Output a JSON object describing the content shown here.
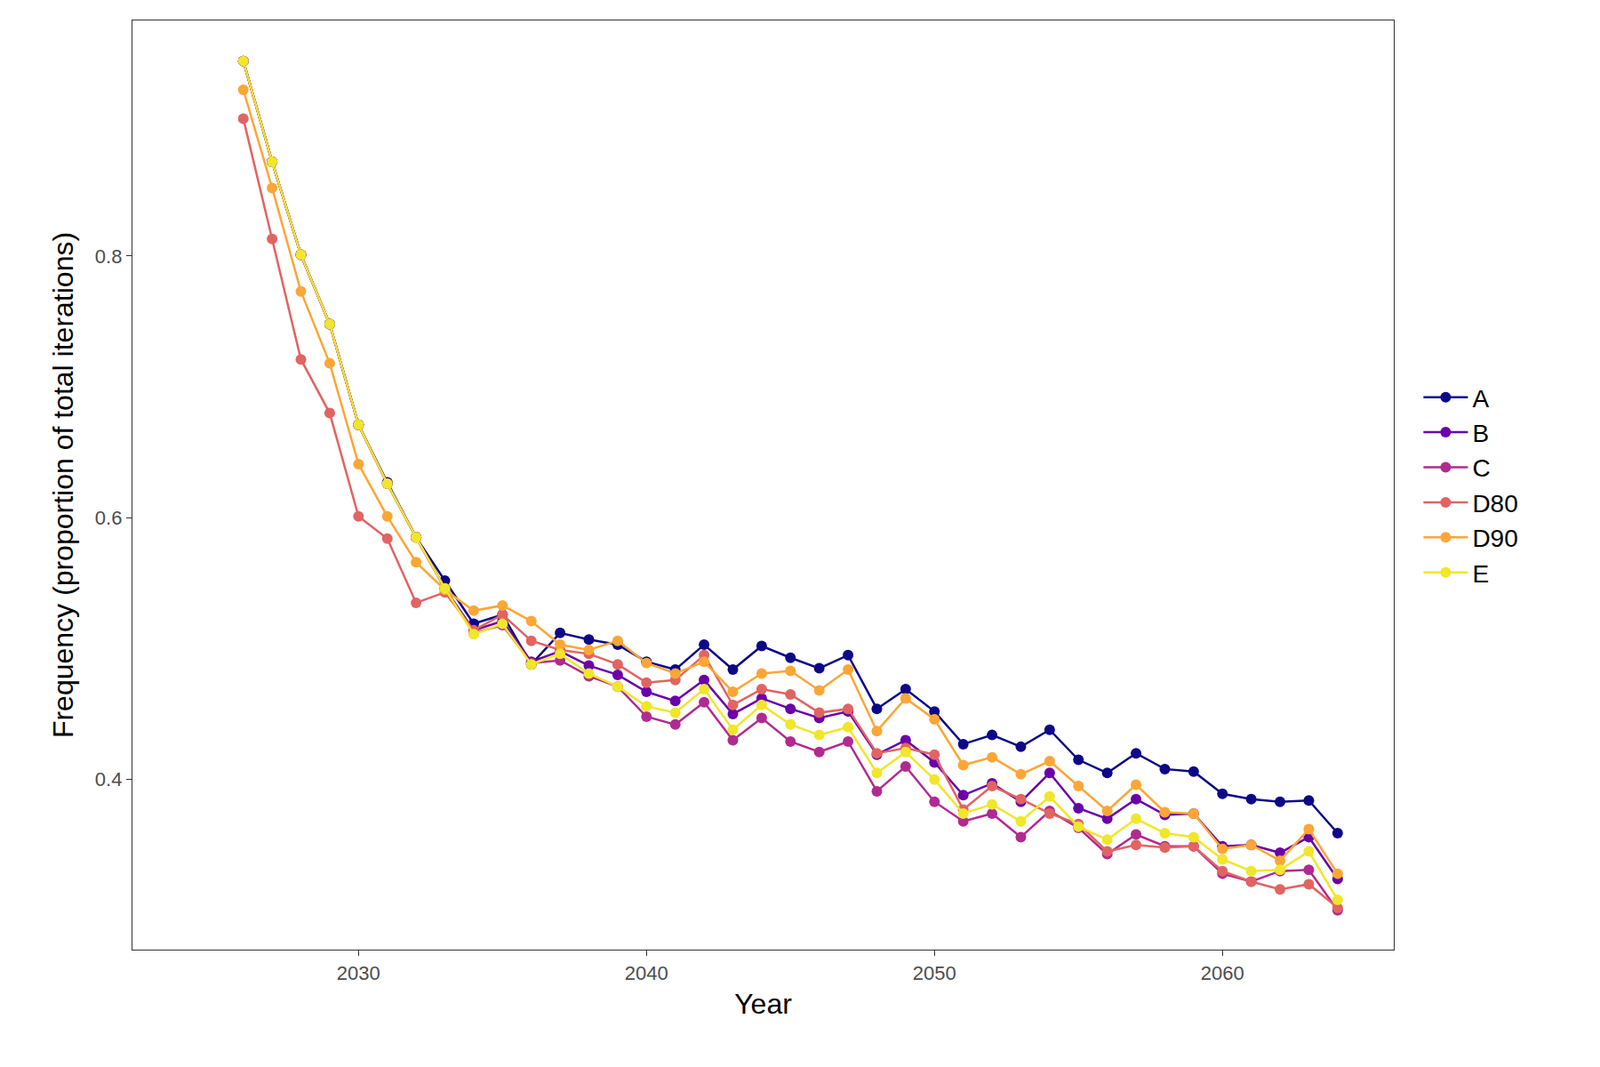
{
  "chart_data": {
    "type": "line",
    "x_label": "Year",
    "y_label": "Frequency (proportion of total iterations)",
    "x": [
      2026,
      2027,
      2028,
      2029,
      2030,
      2031,
      2032,
      2033,
      2034,
      2035,
      2036,
      2037,
      2038,
      2039,
      2040,
      2041,
      2042,
      2043,
      2044,
      2045,
      2046,
      2047,
      2048,
      2049,
      2050,
      2051,
      2052,
      2053,
      2054,
      2055,
      2056,
      2057,
      2058,
      2059,
      2060,
      2061,
      2062,
      2063,
      2064
    ],
    "xlim": [
      2022.15,
      2065.95
    ],
    "xticks": [
      2030,
      2040,
      2050,
      2060
    ],
    "ylim": [
      0.27,
      0.98
    ],
    "yticks": [
      0.4,
      0.6,
      0.8
    ],
    "grid": false,
    "legend": "right",
    "marker": "circle",
    "line_style": "solid",
    "series": [
      {
        "name": "A",
        "color": "#0d0887",
        "values": [
          0.949,
          0.872,
          0.801,
          0.748,
          0.671,
          0.627,
          0.585,
          0.552,
          0.519,
          0.526,
          0.488,
          0.512,
          0.507,
          0.503,
          0.49,
          0.484,
          0.503,
          0.484,
          0.502,
          0.493,
          0.485,
          0.495,
          0.454,
          0.469,
          0.452,
          0.427,
          0.434,
          0.425,
          0.438,
          0.415,
          0.405,
          0.42,
          0.408,
          0.406,
          0.389,
          0.385,
          0.383,
          0.384,
          0.359
        ]
      },
      {
        "name": "B",
        "color": "#6a00a8",
        "values": [
          0.949,
          0.872,
          0.801,
          0.748,
          0.671,
          0.626,
          0.585,
          0.546,
          0.514,
          0.521,
          0.49,
          0.498,
          0.487,
          0.48,
          0.467,
          0.46,
          0.476,
          0.45,
          0.462,
          0.454,
          0.447,
          0.452,
          0.419,
          0.43,
          0.413,
          0.388,
          0.397,
          0.383,
          0.405,
          0.378,
          0.37,
          0.385,
          0.373,
          0.374,
          0.349,
          0.35,
          0.344,
          0.356,
          0.324
        ]
      },
      {
        "name": "C",
        "color": "#b12a90",
        "values": [
          0.949,
          0.872,
          0.801,
          0.748,
          0.671,
          0.626,
          0.585,
          0.546,
          0.512,
          0.518,
          0.489,
          0.491,
          0.479,
          0.471,
          0.448,
          0.442,
          0.459,
          0.43,
          0.447,
          0.429,
          0.421,
          0.429,
          0.391,
          0.41,
          0.383,
          0.368,
          0.374,
          0.356,
          0.376,
          0.363,
          0.343,
          0.358,
          0.349,
          0.349,
          0.328,
          0.322,
          0.33,
          0.331,
          0.3
        ]
      },
      {
        "name": "D80",
        "color": "#e16462",
        "values": [
          0.905,
          0.813,
          0.721,
          0.68,
          0.601,
          0.584,
          0.535,
          0.543,
          0.514,
          0.526,
          0.506,
          0.499,
          0.496,
          0.488,
          0.474,
          0.476,
          0.495,
          0.457,
          0.469,
          0.465,
          0.451,
          0.454,
          0.42,
          0.424,
          0.419,
          0.377,
          0.395,
          0.385,
          0.374,
          0.366,
          0.345,
          0.35,
          0.348,
          0.349,
          0.33,
          0.322,
          0.316,
          0.32,
          0.302
        ]
      },
      {
        "name": "D90",
        "color": "#fca636",
        "values": [
          0.927,
          0.852,
          0.773,
          0.718,
          0.641,
          0.601,
          0.566,
          0.545,
          0.529,
          0.533,
          0.521,
          0.503,
          0.499,
          0.506,
          0.489,
          0.481,
          0.49,
          0.467,
          0.481,
          0.483,
          0.468,
          0.484,
          0.437,
          0.462,
          0.446,
          0.411,
          0.417,
          0.404,
          0.414,
          0.395,
          0.376,
          0.396,
          0.375,
          0.374,
          0.347,
          0.35,
          0.338,
          0.362,
          0.328
        ]
      },
      {
        "name": "E",
        "color": "#f0e62a",
        "values": [
          0.949,
          0.872,
          0.801,
          0.748,
          0.671,
          0.626,
          0.585,
          0.546,
          0.511,
          0.519,
          0.488,
          0.496,
          0.481,
          0.471,
          0.456,
          0.451,
          0.469,
          0.438,
          0.457,
          0.442,
          0.434,
          0.44,
          0.405,
          0.421,
          0.4,
          0.374,
          0.381,
          0.368,
          0.387,
          0.364,
          0.354,
          0.37,
          0.359,
          0.356,
          0.339,
          0.33,
          0.331,
          0.345,
          0.308
        ]
      }
    ]
  }
}
